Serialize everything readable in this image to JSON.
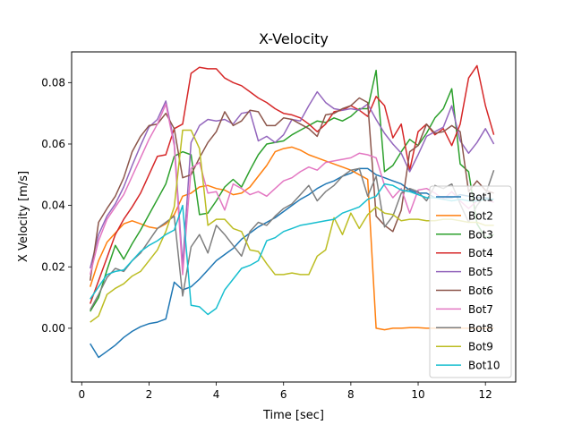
{
  "chart_data": {
    "type": "line",
    "title": "X-Velocity",
    "xlabel": "Time [sec]",
    "ylabel": "X Velocity [m/s]",
    "xlim": [
      -0.3,
      12.9
    ],
    "ylim": [
      -0.0175,
      0.09
    ],
    "xticks": [
      0,
      2,
      4,
      6,
      8,
      10,
      12
    ],
    "xtick_labels": [
      "0",
      "2",
      "4",
      "6",
      "8",
      "10",
      "12"
    ],
    "yticks": [
      0.0,
      0.02,
      0.04,
      0.06,
      0.08
    ],
    "ytick_labels": [
      "0.00",
      "0.02",
      "0.04",
      "0.06",
      "0.08"
    ],
    "grid": false,
    "legend_position": "lower right",
    "series": [
      {
        "name": "Bot1",
        "color": "#1f77b4",
        "x": [
          0.25,
          0.5,
          0.75,
          1,
          1.25,
          1.5,
          1.75,
          2,
          2.25,
          2.5,
          2.75,
          3,
          3.25,
          3.5,
          3.75,
          4,
          4.25,
          4.5,
          4.75,
          5,
          5.25,
          5.5,
          5.75,
          6,
          6.25,
          6.5,
          6.75,
          7,
          7.25,
          7.5,
          7.75,
          8,
          8.25,
          8.5,
          8.75,
          9,
          9.25,
          9.5,
          9.75,
          10,
          10.25,
          10.5,
          10.75,
          11,
          11.25,
          11.5,
          11.75,
          12,
          12.25
        ],
        "y": [
          -0.005,
          -0.0095,
          -0.0075,
          -0.0055,
          -0.003,
          -0.001,
          0.0005,
          0.0015,
          0.002,
          0.003,
          0.015,
          0.0125,
          0.0135,
          0.016,
          0.019,
          0.022,
          0.024,
          0.026,
          0.029,
          0.031,
          0.033,
          0.0345,
          0.036,
          0.038,
          0.04,
          0.042,
          0.0435,
          0.0455,
          0.047,
          0.048,
          0.0495,
          0.0505,
          0.052,
          0.052,
          0.05,
          0.049,
          0.048,
          0.047,
          0.045,
          0.044,
          0.044,
          0.0425,
          0.0425,
          0.0425,
          0.0435,
          0.043,
          0.0425,
          0.0425,
          0.042
        ]
      },
      {
        "name": "Bot2",
        "color": "#ff7f0e",
        "x": [
          0.25,
          0.5,
          0.75,
          1,
          1.25,
          1.5,
          1.75,
          2,
          2.25,
          2.5,
          2.75,
          3,
          3.25,
          3.5,
          3.75,
          4,
          4.25,
          4.5,
          4.75,
          5,
          5.25,
          5.5,
          5.75,
          6,
          6.25,
          6.5,
          6.75,
          7,
          7.25,
          7.5,
          7.75,
          8,
          8.25,
          8.5,
          8.75,
          9,
          9.25,
          9.5,
          9.75,
          10,
          10.25,
          10.5,
          10.75,
          11,
          11.25,
          11.5,
          11.75,
          12,
          12.25
        ],
        "y": [
          0.0135,
          0.022,
          0.028,
          0.031,
          0.034,
          0.035,
          0.034,
          0.033,
          0.0325,
          0.034,
          0.037,
          0.043,
          0.044,
          0.046,
          0.0465,
          0.0455,
          0.045,
          0.0435,
          0.044,
          0.046,
          0.0495,
          0.053,
          0.0575,
          0.0585,
          0.059,
          0.058,
          0.0565,
          0.0555,
          0.0545,
          0.0535,
          0.0525,
          0.0515,
          0.05,
          0.0485,
          0.0,
          -0.0005,
          0.0,
          0.0,
          0.0002,
          0.0002,
          0.0,
          0.0,
          0.0,
          0.0,
          0.0,
          0.0,
          0.0,
          0.0,
          0.0
        ]
      },
      {
        "name": "Bot3",
        "color": "#2ca02c",
        "x": [
          0.25,
          0.5,
          0.75,
          1,
          1.25,
          1.5,
          1.75,
          2,
          2.25,
          2.5,
          2.75,
          3,
          3.25,
          3.5,
          3.75,
          4,
          4.25,
          4.5,
          4.75,
          5,
          5.25,
          5.5,
          5.75,
          6,
          6.25,
          6.5,
          6.75,
          7,
          7.25,
          7.5,
          7.75,
          8,
          8.25,
          8.5,
          8.75,
          9,
          9.25,
          9.5,
          9.75,
          10,
          10.25,
          10.5,
          10.75,
          11,
          11.25,
          11.5,
          11.75,
          12,
          12.25
        ],
        "y": [
          0.0055,
          0.01,
          0.019,
          0.027,
          0.0225,
          0.0275,
          0.032,
          0.037,
          0.042,
          0.047,
          0.056,
          0.0575,
          0.0565,
          0.037,
          0.0375,
          0.0415,
          0.046,
          0.0485,
          0.046,
          0.0515,
          0.0565,
          0.06,
          0.0605,
          0.061,
          0.063,
          0.0645,
          0.066,
          0.0675,
          0.067,
          0.0685,
          0.0675,
          0.069,
          0.0715,
          0.0715,
          0.084,
          0.051,
          0.053,
          0.0575,
          0.0615,
          0.0595,
          0.0635,
          0.0685,
          0.0715,
          0.078,
          0.0535,
          0.051,
          0.034,
          0.0295,
          0.0305
        ]
      },
      {
        "name": "Bot4",
        "color": "#d62728",
        "x": [
          0.25,
          0.5,
          0.75,
          1,
          1.25,
          1.5,
          1.75,
          2,
          2.25,
          2.5,
          2.75,
          3,
          3.25,
          3.5,
          3.75,
          4,
          4.25,
          4.5,
          4.75,
          5,
          5.25,
          5.5,
          5.75,
          6,
          6.25,
          6.5,
          6.75,
          7,
          7.25,
          7.5,
          7.75,
          8,
          8.25,
          8.5,
          8.75,
          9,
          9.25,
          9.5,
          9.75,
          10,
          10.25,
          10.5,
          10.75,
          11,
          11.25,
          11.5,
          11.75,
          12,
          12.25
        ],
        "y": [
          0.008,
          0.0155,
          0.023,
          0.0305,
          0.0355,
          0.0395,
          0.044,
          0.05,
          0.056,
          0.0565,
          0.065,
          0.0665,
          0.083,
          0.085,
          0.0845,
          0.0845,
          0.0815,
          0.08,
          0.079,
          0.077,
          0.075,
          0.0735,
          0.0715,
          0.07,
          0.0695,
          0.0685,
          0.0665,
          0.064,
          0.0665,
          0.0705,
          0.071,
          0.0725,
          0.071,
          0.069,
          0.0755,
          0.0725,
          0.062,
          0.0665,
          0.0515,
          0.064,
          0.0665,
          0.063,
          0.065,
          0.0595,
          0.0665,
          0.0815,
          0.0855,
          0.0725,
          0.063
        ]
      },
      {
        "name": "Bot5",
        "color": "#9467bd",
        "x": [
          0.25,
          0.5,
          0.75,
          1,
          1.25,
          1.5,
          1.75,
          2,
          2.25,
          2.5,
          2.75,
          3,
          3.25,
          3.5,
          3.75,
          4,
          4.25,
          4.5,
          4.75,
          5,
          5.25,
          5.5,
          5.75,
          6,
          6.25,
          6.5,
          6.75,
          7,
          7.25,
          7.5,
          7.75,
          8,
          8.25,
          8.5,
          8.75,
          9,
          9.25,
          9.5,
          9.75,
          10,
          10.25,
          10.5,
          10.75,
          11,
          11.25,
          11.5,
          11.75,
          12,
          12.25
        ],
        "y": [
          0.0195,
          0.0305,
          0.0365,
          0.0405,
          0.046,
          0.053,
          0.0595,
          0.0655,
          0.068,
          0.074,
          0.0605,
          0.0205,
          0.0605,
          0.066,
          0.068,
          0.0675,
          0.068,
          0.0665,
          0.07,
          0.0705,
          0.061,
          0.0625,
          0.0605,
          0.063,
          0.068,
          0.0675,
          0.0725,
          0.077,
          0.0735,
          0.0715,
          0.071,
          0.0715,
          0.071,
          0.073,
          0.068,
          0.0635,
          0.06,
          0.057,
          0.051,
          0.0565,
          0.0625,
          0.064,
          0.0655,
          0.0725,
          0.061,
          0.057,
          0.0605,
          0.065,
          0.06
        ]
      },
      {
        "name": "Bot6",
        "color": "#8c564b",
        "x": [
          0.25,
          0.5,
          0.75,
          1,
          1.25,
          1.5,
          1.75,
          2,
          2.25,
          2.5,
          2.75,
          3,
          3.25,
          3.5,
          3.75,
          4,
          4.25,
          4.5,
          4.75,
          5,
          5.25,
          5.5,
          5.75,
          6,
          6.25,
          6.5,
          6.75,
          7,
          7.25,
          7.5,
          7.75,
          8,
          8.25,
          8.5,
          8.75,
          9,
          9.25,
          9.5,
          9.75,
          10,
          10.25,
          10.5,
          10.75,
          11,
          11.25,
          11.5,
          11.75,
          12,
          12.25
        ],
        "y": [
          0.0155,
          0.0345,
          0.039,
          0.043,
          0.049,
          0.0575,
          0.0625,
          0.066,
          0.0665,
          0.07,
          0.065,
          0.049,
          0.05,
          0.0555,
          0.0605,
          0.064,
          0.0705,
          0.066,
          0.0675,
          0.071,
          0.0705,
          0.066,
          0.066,
          0.0685,
          0.068,
          0.0665,
          0.065,
          0.0625,
          0.0695,
          0.07,
          0.0715,
          0.0725,
          0.075,
          0.0735,
          0.0365,
          0.0335,
          0.0315,
          0.0385,
          0.0575,
          0.0595,
          0.0665,
          0.0635,
          0.064,
          0.066,
          0.064,
          0.0445,
          0.048,
          0.045,
          0.044
        ]
      },
      {
        "name": "Bot7",
        "color": "#e377c2",
        "x": [
          0.25,
          0.5,
          0.75,
          1,
          1.25,
          1.5,
          1.75,
          2,
          2.25,
          2.5,
          2.75,
          3,
          3.25,
          3.5,
          3.75,
          4,
          4.25,
          4.5,
          4.75,
          5,
          5.25,
          5.5,
          5.75,
          6,
          6.25,
          6.5,
          6.75,
          7,
          7.25,
          7.5,
          7.75,
          8,
          8.25,
          8.5,
          8.75,
          9,
          9.25,
          9.5,
          9.75,
          10,
          10.25,
          10.5,
          10.75,
          11,
          11.25,
          11.5,
          11.75,
          12,
          12.25
        ],
        "y": [
          0.0175,
          0.0285,
          0.0355,
          0.0395,
          0.0435,
          0.0495,
          0.0555,
          0.0615,
          0.0665,
          0.073,
          0.0595,
          0.0175,
          0.052,
          0.054,
          0.044,
          0.0445,
          0.0385,
          0.047,
          0.0455,
          0.0435,
          0.0445,
          0.043,
          0.0455,
          0.048,
          0.049,
          0.051,
          0.0525,
          0.0515,
          0.054,
          0.0545,
          0.055,
          0.0555,
          0.057,
          0.0565,
          0.0555,
          0.0465,
          0.0425,
          0.0455,
          0.0375,
          0.045,
          0.0455,
          0.044,
          0.042,
          0.0445,
          0.0415,
          0.039,
          0.0415,
          0.042,
          0.041
        ]
      },
      {
        "name": "Bot8",
        "color": "#7f7f7f",
        "x": [
          0.25,
          0.5,
          0.75,
          1,
          1.25,
          1.5,
          1.75,
          2,
          2.25,
          2.5,
          2.75,
          3,
          3.25,
          3.5,
          3.75,
          4,
          4.25,
          4.5,
          4.75,
          5,
          5.25,
          5.5,
          5.75,
          6,
          6.25,
          6.5,
          6.75,
          7,
          7.25,
          7.5,
          7.75,
          8,
          8.25,
          8.5,
          8.75,
          9,
          9.25,
          9.5,
          9.75,
          10,
          10.25,
          10.5,
          10.75,
          11,
          11.25,
          11.5,
          11.75,
          12,
          12.25
        ],
        "y": [
          0.006,
          0.011,
          0.0165,
          0.0195,
          0.0185,
          0.022,
          0.0245,
          0.0285,
          0.0325,
          0.0345,
          0.0365,
          0.0105,
          0.0265,
          0.0305,
          0.0245,
          0.0335,
          0.0305,
          0.027,
          0.0235,
          0.0315,
          0.0345,
          0.0335,
          0.0365,
          0.039,
          0.0405,
          0.0435,
          0.0465,
          0.0415,
          0.0445,
          0.0465,
          0.0495,
          0.0515,
          0.052,
          0.043,
          0.0495,
          0.033,
          0.0365,
          0.044,
          0.0455,
          0.0445,
          0.0415,
          0.0465,
          0.0455,
          0.047,
          0.0405,
          0.0345,
          0.04,
          0.0435,
          0.0515
        ]
      },
      {
        "name": "Bot9",
        "color": "#bcbd22",
        "x": [
          0.25,
          0.5,
          0.75,
          1,
          1.25,
          1.5,
          1.75,
          2,
          2.25,
          2.5,
          2.75,
          3,
          3.25,
          3.5,
          3.75,
          4,
          4.25,
          4.5,
          4.75,
          5,
          5.25,
          5.5,
          5.75,
          6,
          6.25,
          6.5,
          6.75,
          7,
          7.25,
          7.5,
          7.75,
          8,
          8.25,
          8.5,
          8.75,
          9,
          9.25,
          9.5,
          9.75,
          10,
          10.25,
          10.5,
          10.75,
          11,
          11.25,
          11.5,
          11.75,
          12,
          12.25
        ],
        "y": [
          0.002,
          0.004,
          0.011,
          0.013,
          0.0145,
          0.017,
          0.0185,
          0.022,
          0.0255,
          0.0315,
          0.0395,
          0.0645,
          0.0645,
          0.0585,
          0.0335,
          0.0355,
          0.0355,
          0.0325,
          0.0315,
          0.0255,
          0.025,
          0.021,
          0.0175,
          0.0175,
          0.018,
          0.0175,
          0.0175,
          0.0235,
          0.0255,
          0.036,
          0.0305,
          0.0375,
          0.0325,
          0.037,
          0.0395,
          0.0375,
          0.037,
          0.035,
          0.0355,
          0.0355,
          0.035,
          0.035,
          0.0355,
          0.0355,
          0.035,
          0.0345,
          0.0345,
          0.0335,
          0.0335
        ]
      },
      {
        "name": "Bot10",
        "color": "#17becf",
        "x": [
          0.25,
          0.5,
          0.75,
          1,
          1.25,
          1.5,
          1.75,
          2,
          2.25,
          2.5,
          2.75,
          3,
          3.25,
          3.5,
          3.75,
          4,
          4.25,
          4.5,
          4.75,
          5,
          5.25,
          5.5,
          5.75,
          6,
          6.25,
          6.5,
          6.75,
          7,
          7.25,
          7.5,
          7.75,
          8,
          8.25,
          8.5,
          8.75,
          9,
          9.25,
          9.5,
          9.75,
          10,
          10.25,
          10.5,
          10.75,
          11,
          11.25,
          11.5,
          11.75,
          12,
          12.25
        ],
        "y": [
          0.0095,
          0.0135,
          0.0175,
          0.0185,
          0.019,
          0.022,
          0.025,
          0.027,
          0.0285,
          0.0305,
          0.032,
          0.04,
          0.0075,
          0.007,
          0.0045,
          0.0065,
          0.0125,
          0.016,
          0.0195,
          0.0205,
          0.022,
          0.0285,
          0.0295,
          0.0315,
          0.0325,
          0.0335,
          0.034,
          0.0345,
          0.035,
          0.0355,
          0.0375,
          0.0385,
          0.0395,
          0.042,
          0.043,
          0.047,
          0.0465,
          0.045,
          0.0445,
          0.0435,
          0.0425,
          0.0425,
          0.042,
          0.0415,
          0.042,
          0.0415,
          0.0415,
          0.042,
          0.042
        ]
      }
    ]
  }
}
